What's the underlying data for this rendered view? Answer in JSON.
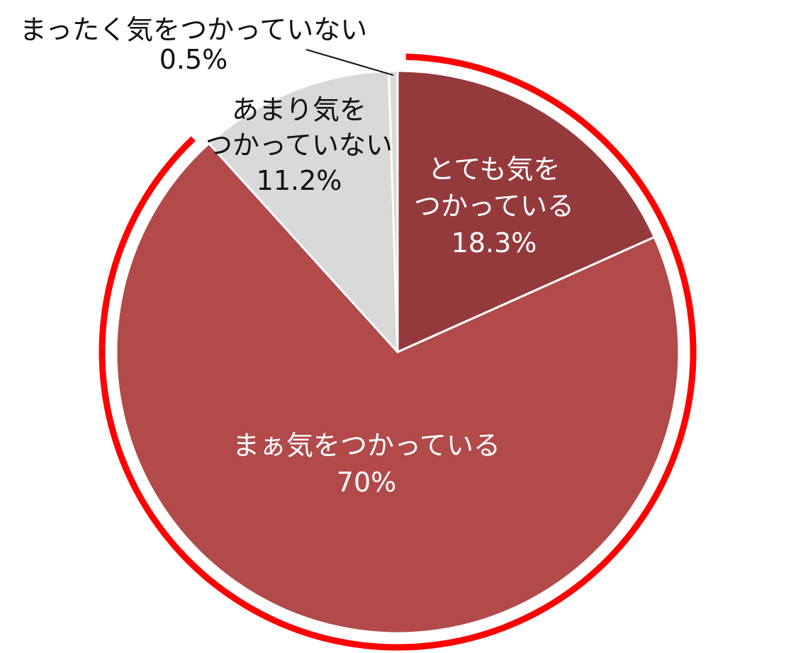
{
  "chart_data": {
    "type": "pie",
    "start_angle_deg": 0,
    "direction": "clockwise",
    "slices": [
      {
        "label_lines": [
          "とても気を",
          "つかっている"
        ],
        "value": 18.3,
        "value_label": "18.3%",
        "color": "#953a3c",
        "label_color": "#ffffff",
        "highlighted": true
      },
      {
        "label_lines": [
          "まぁ気をつかっている"
        ],
        "value": 70,
        "value_label": "70%",
        "color": "#b24a4a",
        "label_color": "#ffffff",
        "highlighted": true
      },
      {
        "label_lines": [
          "あまり気を",
          "つかっていない"
        ],
        "value": 11.2,
        "value_label": "11.2%",
        "color": "#d9d9d9",
        "label_color": "#111111",
        "highlighted": false
      },
      {
        "label_lines": [
          "まったく気をつかっていない"
        ],
        "value": 0.5,
        "value_label": "0.5%",
        "color": "#d9d9d9",
        "label_color": "#111111",
        "highlighted": false
      }
    ],
    "highlight_ring_color": "#ff0000",
    "slice_border_color": "#ffffff"
  }
}
